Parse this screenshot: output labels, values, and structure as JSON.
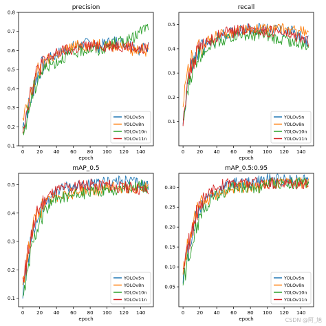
{
  "watermark": "CSDN @阿_旭",
  "colors": {
    "YOLOv5n": "#1f77b4",
    "YOLOv8n": "#ff7f0e",
    "YOLOv10n": "#2ca02c",
    "YOLOv11n": "#d62728"
  },
  "chart_data": [
    {
      "type": "line",
      "title": "precision",
      "xlabel": "epoch",
      "ylabel": "",
      "xlim": [
        -5,
        155
      ],
      "ylim": [
        0.1,
        0.8
      ],
      "xticks": [
        0,
        20,
        40,
        60,
        80,
        100,
        120,
        140
      ],
      "yticks": [
        0.1,
        0.2,
        0.3,
        0.4,
        0.5,
        0.6,
        0.7,
        0.8
      ],
      "ytick_labels": [
        "0.1",
        "0.2",
        "0.3",
        "0.4",
        "0.5",
        "0.6",
        "0.7",
        "0.8"
      ],
      "legend": "lower-right",
      "grid": false,
      "series": [
        {
          "name": "YOLOv5n",
          "x": [
            0,
            5,
            10,
            15,
            20,
            30,
            40,
            50,
            60,
            70,
            80,
            90,
            100,
            110,
            120,
            130,
            140,
            145
          ],
          "values": [
            0.2,
            0.28,
            0.35,
            0.45,
            0.5,
            0.55,
            0.58,
            0.6,
            0.62,
            0.63,
            0.64,
            0.62,
            0.64,
            0.65,
            0.64,
            0.63,
            0.6,
            0.62
          ]
        },
        {
          "name": "YOLOv8n",
          "x": [
            0,
            5,
            10,
            15,
            20,
            30,
            40,
            50,
            60,
            70,
            80,
            90,
            100,
            110,
            120,
            130,
            140,
            145
          ],
          "values": [
            0.22,
            0.3,
            0.38,
            0.46,
            0.5,
            0.55,
            0.58,
            0.6,
            0.62,
            0.63,
            0.62,
            0.64,
            0.63,
            0.62,
            0.63,
            0.6,
            0.61,
            0.6
          ]
        },
        {
          "name": "YOLOv10n",
          "x": [
            0,
            5,
            10,
            15,
            20,
            30,
            40,
            50,
            60,
            70,
            80,
            90,
            100,
            110,
            120,
            130,
            140,
            145
          ],
          "values": [
            0.15,
            0.25,
            0.35,
            0.42,
            0.48,
            0.52,
            0.54,
            0.57,
            0.58,
            0.6,
            0.61,
            0.6,
            0.62,
            0.64,
            0.65,
            0.66,
            0.7,
            0.72
          ]
        },
        {
          "name": "YOLOv11n",
          "x": [
            0,
            5,
            10,
            15,
            20,
            30,
            40,
            50,
            60,
            70,
            80,
            90,
            100,
            110,
            120,
            130,
            140,
            145
          ],
          "values": [
            0.2,
            0.3,
            0.4,
            0.46,
            0.52,
            0.56,
            0.58,
            0.6,
            0.6,
            0.62,
            0.62,
            0.63,
            0.62,
            0.63,
            0.62,
            0.62,
            0.6,
            0.61
          ]
        }
      ]
    },
    {
      "type": "line",
      "title": "recall",
      "xlabel": "epoch",
      "ylabel": "",
      "xlim": [
        -5,
        155
      ],
      "ylim": [
        0.0,
        0.55
      ],
      "xticks": [
        0,
        20,
        40,
        60,
        80,
        100,
        120,
        140
      ],
      "yticks": [
        0.1,
        0.2,
        0.3,
        0.4,
        0.5
      ],
      "ytick_labels": [
        "0.1",
        "0.2",
        "0.3",
        "0.4",
        "0.5"
      ],
      "legend": "lower-right",
      "grid": false,
      "series": [
        {
          "name": "YOLOv5n",
          "x": [
            0,
            5,
            10,
            15,
            20,
            30,
            40,
            50,
            60,
            70,
            80,
            90,
            100,
            110,
            120,
            130,
            140,
            145
          ],
          "values": [
            0.1,
            0.25,
            0.32,
            0.36,
            0.4,
            0.42,
            0.44,
            0.46,
            0.47,
            0.48,
            0.48,
            0.48,
            0.49,
            0.48,
            0.47,
            0.47,
            0.45,
            0.43
          ]
        },
        {
          "name": "YOLOv8n",
          "x": [
            0,
            5,
            10,
            15,
            20,
            30,
            40,
            50,
            60,
            70,
            80,
            90,
            100,
            110,
            120,
            130,
            140,
            145
          ],
          "values": [
            0.15,
            0.3,
            0.35,
            0.38,
            0.41,
            0.43,
            0.45,
            0.46,
            0.47,
            0.48,
            0.47,
            0.48,
            0.48,
            0.48,
            0.48,
            0.47,
            0.48,
            0.46
          ]
        },
        {
          "name": "YOLOv10n",
          "x": [
            0,
            5,
            10,
            15,
            20,
            30,
            40,
            50,
            60,
            70,
            80,
            90,
            100,
            110,
            120,
            130,
            140,
            145
          ],
          "values": [
            0.08,
            0.22,
            0.3,
            0.35,
            0.38,
            0.41,
            0.43,
            0.44,
            0.45,
            0.46,
            0.45,
            0.46,
            0.45,
            0.44,
            0.44,
            0.43,
            0.42,
            0.41
          ]
        },
        {
          "name": "YOLOv11n",
          "x": [
            0,
            5,
            10,
            15,
            20,
            30,
            40,
            50,
            60,
            70,
            80,
            90,
            100,
            110,
            120,
            130,
            140,
            145
          ],
          "values": [
            0.12,
            0.26,
            0.33,
            0.37,
            0.4,
            0.43,
            0.45,
            0.47,
            0.47,
            0.48,
            0.48,
            0.48,
            0.47,
            0.47,
            0.46,
            0.45,
            0.44,
            0.43
          ]
        }
      ]
    },
    {
      "type": "line",
      "title": "mAP_0.5",
      "xlabel": "epoch",
      "ylabel": "",
      "xlim": [
        -5,
        155
      ],
      "ylim": [
        0.07,
        0.54
      ],
      "xticks": [
        0,
        20,
        40,
        60,
        80,
        100,
        120,
        140
      ],
      "yticks": [
        0.1,
        0.2,
        0.3,
        0.4,
        0.5
      ],
      "ytick_labels": [
        "0.1",
        "0.2",
        "0.3",
        "0.4",
        "0.5"
      ],
      "legend": "lower-right",
      "grid": false,
      "series": [
        {
          "name": "YOLOv5n",
          "x": [
            0,
            5,
            10,
            15,
            20,
            30,
            40,
            50,
            60,
            70,
            80,
            90,
            100,
            110,
            120,
            130,
            140,
            145
          ],
          "values": [
            0.12,
            0.22,
            0.3,
            0.36,
            0.41,
            0.45,
            0.48,
            0.49,
            0.49,
            0.5,
            0.5,
            0.5,
            0.51,
            0.51,
            0.51,
            0.51,
            0.5,
            0.5
          ]
        },
        {
          "name": "YOLOv8n",
          "x": [
            0,
            5,
            10,
            15,
            20,
            30,
            40,
            50,
            60,
            70,
            80,
            90,
            100,
            110,
            120,
            130,
            140,
            145
          ],
          "values": [
            0.15,
            0.24,
            0.32,
            0.37,
            0.41,
            0.44,
            0.46,
            0.47,
            0.47,
            0.48,
            0.48,
            0.48,
            0.49,
            0.49,
            0.49,
            0.49,
            0.49,
            0.49
          ]
        },
        {
          "name": "YOLOv10n",
          "x": [
            0,
            5,
            10,
            15,
            20,
            30,
            40,
            50,
            60,
            70,
            80,
            90,
            100,
            110,
            120,
            130,
            140,
            145
          ],
          "values": [
            0.09,
            0.18,
            0.27,
            0.33,
            0.38,
            0.42,
            0.45,
            0.46,
            0.46,
            0.47,
            0.47,
            0.48,
            0.48,
            0.48,
            0.49,
            0.49,
            0.5,
            0.49
          ]
        },
        {
          "name": "YOLOv11n",
          "x": [
            0,
            5,
            10,
            15,
            20,
            30,
            40,
            50,
            60,
            70,
            80,
            90,
            100,
            110,
            120,
            130,
            140,
            145
          ],
          "values": [
            0.14,
            0.24,
            0.32,
            0.37,
            0.42,
            0.46,
            0.48,
            0.49,
            0.49,
            0.5,
            0.5,
            0.5,
            0.5,
            0.49,
            0.49,
            0.49,
            0.48,
            0.48
          ]
        }
      ]
    },
    {
      "type": "line",
      "title": "mAP_0.5:0.95",
      "xlabel": "epoch",
      "ylabel": "",
      "xlim": [
        -5,
        155
      ],
      "ylim": [
        0.0,
        0.335
      ],
      "xticks": [
        0,
        20,
        40,
        60,
        80,
        100,
        120,
        140
      ],
      "yticks": [
        0.05,
        0.1,
        0.15,
        0.2,
        0.25,
        0.3
      ],
      "ytick_labels": [
        "0.05",
        "0.10",
        "0.15",
        "0.20",
        "0.25",
        "0.30"
      ],
      "legend": "lower-right",
      "grid": false,
      "series": [
        {
          "name": "YOLOv5n",
          "x": [
            0,
            5,
            10,
            15,
            20,
            30,
            40,
            50,
            60,
            70,
            80,
            90,
            100,
            110,
            120,
            130,
            140,
            145
          ],
          "values": [
            0.08,
            0.13,
            0.18,
            0.22,
            0.25,
            0.28,
            0.29,
            0.3,
            0.31,
            0.31,
            0.31,
            0.315,
            0.32,
            0.32,
            0.32,
            0.32,
            0.32,
            0.32
          ]
        },
        {
          "name": "YOLOv8n",
          "x": [
            0,
            5,
            10,
            15,
            20,
            30,
            40,
            50,
            60,
            70,
            80,
            90,
            100,
            110,
            120,
            130,
            140,
            145
          ],
          "values": [
            0.09,
            0.15,
            0.19,
            0.23,
            0.25,
            0.27,
            0.28,
            0.29,
            0.3,
            0.3,
            0.3,
            0.3,
            0.31,
            0.31,
            0.31,
            0.31,
            0.31,
            0.31
          ]
        },
        {
          "name": "YOLOv10n",
          "x": [
            0,
            5,
            10,
            15,
            20,
            30,
            40,
            50,
            60,
            70,
            80,
            90,
            100,
            110,
            120,
            130,
            140,
            145
          ],
          "values": [
            0.05,
            0.11,
            0.16,
            0.2,
            0.23,
            0.26,
            0.28,
            0.29,
            0.3,
            0.3,
            0.3,
            0.3,
            0.31,
            0.31,
            0.31,
            0.31,
            0.31,
            0.31
          ]
        },
        {
          "name": "YOLOv11n",
          "x": [
            0,
            5,
            10,
            15,
            20,
            30,
            40,
            50,
            60,
            70,
            80,
            90,
            100,
            110,
            120,
            130,
            140,
            145
          ],
          "values": [
            0.08,
            0.14,
            0.19,
            0.23,
            0.26,
            0.28,
            0.3,
            0.31,
            0.31,
            0.31,
            0.31,
            0.31,
            0.31,
            0.31,
            0.31,
            0.31,
            0.31,
            0.31
          ]
        }
      ]
    }
  ]
}
